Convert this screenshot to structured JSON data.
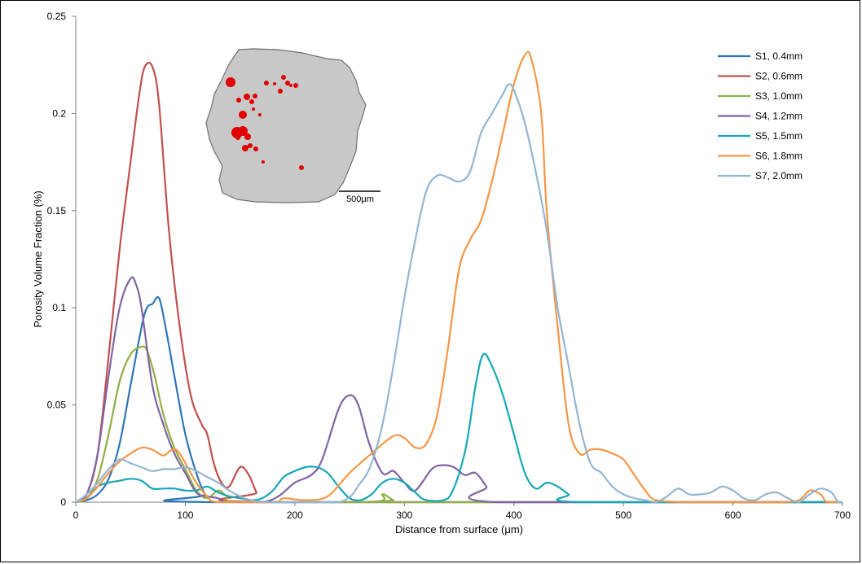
{
  "colors": {
    "axis": "#808080",
    "text": "#000000",
    "pore": "#e00000",
    "cross_section": "#c8c8c8"
  },
  "chart_data": {
    "type": "line",
    "title": "",
    "xlabel": "Distance from surface (μm)",
    "ylabel": "Porosity Volume Fraction (%)",
    "xlim": [
      0,
      700
    ],
    "ylim": [
      0,
      0.25
    ],
    "xticks": [
      0,
      100,
      200,
      300,
      400,
      500,
      600,
      700
    ],
    "yticks": [
      0,
      0.05,
      0.1,
      0.15,
      0.2,
      0.25
    ],
    "xtick_labels": [
      "0",
      "100",
      "200",
      "300",
      "400",
      "500",
      "600",
      "700"
    ],
    "ytick_labels": [
      "0",
      "0.05",
      "0.1",
      "0.15",
      "0.2",
      "0.25"
    ],
    "grid": false,
    "legend_position": "top-right",
    "inset": {
      "description_label": "500μm"
    },
    "series": [
      {
        "name": "S1, 0.4mm",
        "color": "#2e75b6",
        "points": [
          [
            0,
            0
          ],
          [
            10,
            0.001
          ],
          [
            20,
            0.004
          ],
          [
            30,
            0.012
          ],
          [
            40,
            0.03
          ],
          [
            50,
            0.06
          ],
          [
            60,
            0.09
          ],
          [
            65,
            0.1
          ],
          [
            70,
            0.102
          ],
          [
            76,
            0.105
          ],
          [
            82,
            0.09
          ],
          [
            90,
            0.065
          ],
          [
            100,
            0.035
          ],
          [
            110,
            0.015
          ],
          [
            118,
            0.004
          ],
          [
            125,
            0
          ],
          [
            700,
            0
          ]
        ]
      },
      {
        "name": "S2, 0.6mm",
        "color": "#c0504d",
        "points": [
          [
            0,
            0
          ],
          [
            10,
            0.004
          ],
          [
            20,
            0.025
          ],
          [
            30,
            0.075
          ],
          [
            40,
            0.13
          ],
          [
            50,
            0.175
          ],
          [
            58,
            0.21
          ],
          [
            63,
            0.224
          ],
          [
            70,
            0.224
          ],
          [
            76,
            0.205
          ],
          [
            85,
            0.14
          ],
          [
            95,
            0.09
          ],
          [
            105,
            0.055
          ],
          [
            115,
            0.04
          ],
          [
            120,
            0.035
          ],
          [
            126,
            0.02
          ],
          [
            133,
            0.01
          ],
          [
            140,
            0.008
          ],
          [
            150,
            0.018
          ],
          [
            158,
            0.014
          ],
          [
            165,
            0.005
          ],
          [
            172,
            0
          ],
          [
            700,
            0
          ]
        ]
      },
      {
        "name": "S3, 1.0mm",
        "color": "#8faf46",
        "points": [
          [
            0,
            0
          ],
          [
            10,
            0.002
          ],
          [
            20,
            0.012
          ],
          [
            30,
            0.035
          ],
          [
            40,
            0.062
          ],
          [
            50,
            0.076
          ],
          [
            60,
            0.08
          ],
          [
            65,
            0.078
          ],
          [
            72,
            0.065
          ],
          [
            80,
            0.045
          ],
          [
            90,
            0.028
          ],
          [
            100,
            0.017
          ],
          [
            110,
            0.006
          ],
          [
            120,
            0.002
          ],
          [
            130,
            0.006
          ],
          [
            138,
            0.003
          ],
          [
            150,
            0
          ],
          [
            270,
            0
          ],
          [
            280,
            0.004
          ],
          [
            290,
            0.001
          ],
          [
            300,
            0
          ],
          [
            700,
            0
          ]
        ]
      },
      {
        "name": "S4, 1.2mm",
        "color": "#8064a2",
        "points": [
          [
            0,
            0
          ],
          [
            10,
            0.004
          ],
          [
            20,
            0.025
          ],
          [
            30,
            0.065
          ],
          [
            40,
            0.1
          ],
          [
            50,
            0.115
          ],
          [
            55,
            0.112
          ],
          [
            60,
            0.1
          ],
          [
            70,
            0.06
          ],
          [
            80,
            0.04
          ],
          [
            90,
            0.025
          ],
          [
            100,
            0.015
          ],
          [
            110,
            0.005
          ],
          [
            120,
            0.003
          ],
          [
            130,
            0.002
          ],
          [
            140,
            0
          ],
          [
            170,
            0
          ],
          [
            185,
            0.003
          ],
          [
            200,
            0.01
          ],
          [
            215,
            0.014
          ],
          [
            225,
            0.022
          ],
          [
            240,
            0.048
          ],
          [
            250,
            0.055
          ],
          [
            258,
            0.05
          ],
          [
            268,
            0.03
          ],
          [
            280,
            0.015
          ],
          [
            290,
            0.016
          ],
          [
            300,
            0.01
          ],
          [
            310,
            0.006
          ],
          [
            325,
            0.017
          ],
          [
            335,
            0.019
          ],
          [
            345,
            0.018
          ],
          [
            355,
            0.014
          ],
          [
            365,
            0.015
          ],
          [
            375,
            0.008
          ],
          [
            385,
            0
          ],
          [
            700,
            0
          ]
        ]
      },
      {
        "name": "S5, 1.5mm",
        "color": "#17a8b5",
        "points": [
          [
            0,
            0
          ],
          [
            10,
            0.002
          ],
          [
            20,
            0.008
          ],
          [
            30,
            0.01
          ],
          [
            40,
            0.011
          ],
          [
            50,
            0.012
          ],
          [
            60,
            0.011
          ],
          [
            70,
            0.007
          ],
          [
            80,
            0.007
          ],
          [
            90,
            0.007
          ],
          [
            100,
            0.006
          ],
          [
            110,
            0.006
          ],
          [
            120,
            0.008
          ],
          [
            130,
            0.005
          ],
          [
            140,
            0.003
          ],
          [
            150,
            0.002
          ],
          [
            160,
            0.001
          ],
          [
            170,
            0.002
          ],
          [
            180,
            0.006
          ],
          [
            190,
            0.013
          ],
          [
            200,
            0.016
          ],
          [
            210,
            0.018
          ],
          [
            220,
            0.018
          ],
          [
            230,
            0.015
          ],
          [
            240,
            0.008
          ],
          [
            250,
            0.002
          ],
          [
            260,
            0.001
          ],
          [
            270,
            0.004
          ],
          [
            280,
            0.01
          ],
          [
            290,
            0.012
          ],
          [
            300,
            0.01
          ],
          [
            310,
            0.005
          ],
          [
            320,
            0.001
          ],
          [
            340,
            0.002
          ],
          [
            355,
            0.025
          ],
          [
            365,
            0.06
          ],
          [
            372,
            0.076
          ],
          [
            380,
            0.07
          ],
          [
            390,
            0.055
          ],
          [
            400,
            0.035
          ],
          [
            410,
            0.015
          ],
          [
            420,
            0.007
          ],
          [
            430,
            0.01
          ],
          [
            440,
            0.008
          ],
          [
            450,
            0.004
          ],
          [
            460,
            0
          ],
          [
            700,
            0
          ]
        ]
      },
      {
        "name": "S6, 1.8mm",
        "color": "#f79646",
        "points": [
          [
            0,
            0
          ],
          [
            10,
            0.002
          ],
          [
            20,
            0.008
          ],
          [
            30,
            0.015
          ],
          [
            40,
            0.021
          ],
          [
            50,
            0.025
          ],
          [
            60,
            0.028
          ],
          [
            70,
            0.027
          ],
          [
            80,
            0.024
          ],
          [
            88,
            0.027
          ],
          [
            95,
            0.025
          ],
          [
            110,
            0.01
          ],
          [
            120,
            0.003
          ],
          [
            130,
            0
          ],
          [
            180,
            0
          ],
          [
            190,
            0.002
          ],
          [
            210,
            0.001
          ],
          [
            230,
            0.003
          ],
          [
            250,
            0.015
          ],
          [
            270,
            0.025
          ],
          [
            290,
            0.034
          ],
          [
            300,
            0.033
          ],
          [
            310,
            0.028
          ],
          [
            320,
            0.03
          ],
          [
            330,
            0.045
          ],
          [
            340,
            0.08
          ],
          [
            350,
            0.12
          ],
          [
            360,
            0.135
          ],
          [
            370,
            0.145
          ],
          [
            380,
            0.165
          ],
          [
            390,
            0.19
          ],
          [
            400,
            0.215
          ],
          [
            410,
            0.23
          ],
          [
            416,
            0.228
          ],
          [
            425,
            0.2
          ],
          [
            430,
            0.15
          ],
          [
            440,
            0.09
          ],
          [
            450,
            0.04
          ],
          [
            460,
            0.025
          ],
          [
            470,
            0.027
          ],
          [
            480,
            0.027
          ],
          [
            490,
            0.025
          ],
          [
            500,
            0.022
          ],
          [
            510,
            0.014
          ],
          [
            520,
            0.006
          ],
          [
            530,
            0.001
          ],
          [
            560,
            0
          ],
          [
            580,
            0
          ],
          [
            640,
            0
          ],
          [
            660,
            0.001
          ],
          [
            670,
            0.006
          ],
          [
            680,
            0.004
          ],
          [
            686,
            0
          ],
          [
            700,
            0
          ]
        ]
      },
      {
        "name": "S7, 2.0mm",
        "color": "#93b6d3",
        "points": [
          [
            0,
            0
          ],
          [
            10,
            0.004
          ],
          [
            20,
            0.01
          ],
          [
            30,
            0.017
          ],
          [
            40,
            0.022
          ],
          [
            50,
            0.02
          ],
          [
            60,
            0.018
          ],
          [
            70,
            0.016
          ],
          [
            80,
            0.017
          ],
          [
            90,
            0.017
          ],
          [
            100,
            0.018
          ],
          [
            110,
            0.016
          ],
          [
            120,
            0.013
          ],
          [
            130,
            0.01
          ],
          [
            140,
            0.006
          ],
          [
            150,
            0.003
          ],
          [
            160,
            0.001
          ],
          [
            180,
            0
          ],
          [
            240,
            0
          ],
          [
            260,
            0.01
          ],
          [
            270,
            0.02
          ],
          [
            280,
            0.04
          ],
          [
            290,
            0.07
          ],
          [
            300,
            0.105
          ],
          [
            310,
            0.135
          ],
          [
            320,
            0.16
          ],
          [
            330,
            0.168
          ],
          [
            340,
            0.167
          ],
          [
            350,
            0.165
          ],
          [
            360,
            0.17
          ],
          [
            370,
            0.19
          ],
          [
            380,
            0.2
          ],
          [
            390,
            0.21
          ],
          [
            395,
            0.215
          ],
          [
            400,
            0.212
          ],
          [
            410,
            0.195
          ],
          [
            420,
            0.17
          ],
          [
            430,
            0.14
          ],
          [
            440,
            0.1
          ],
          [
            450,
            0.07
          ],
          [
            460,
            0.04
          ],
          [
            470,
            0.02
          ],
          [
            480,
            0.015
          ],
          [
            490,
            0.008
          ],
          [
            500,
            0.004
          ],
          [
            510,
            0.002
          ],
          [
            520,
            0.001
          ],
          [
            530,
            0
          ],
          [
            540,
            0.003
          ],
          [
            550,
            0.007
          ],
          [
            560,
            0.004
          ],
          [
            570,
            0.004
          ],
          [
            580,
            0.005
          ],
          [
            590,
            0.008
          ],
          [
            600,
            0.006
          ],
          [
            610,
            0.002
          ],
          [
            620,
            0.001
          ],
          [
            630,
            0.004
          ],
          [
            640,
            0.005
          ],
          [
            650,
            0.002
          ],
          [
            660,
            0
          ],
          [
            670,
            0.004
          ],
          [
            680,
            0.007
          ],
          [
            690,
            0.005
          ],
          [
            696,
            0
          ],
          [
            700,
            0
          ]
        ]
      }
    ]
  }
}
